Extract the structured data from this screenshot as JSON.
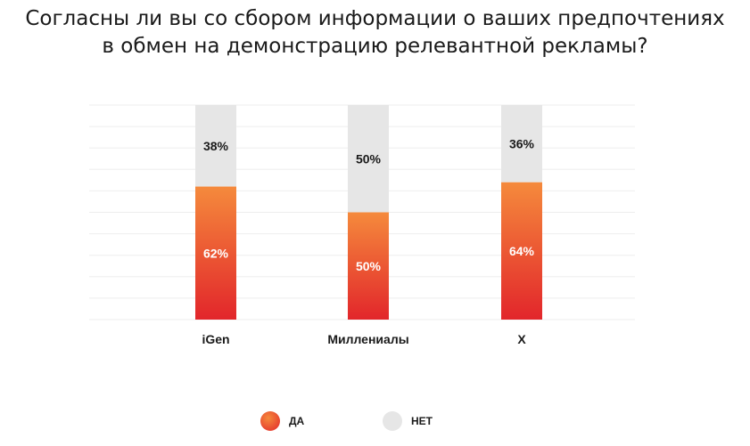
{
  "title_lines": [
    "Согласны ли вы со сбором информации о ваших предпочтениях",
    "в обмен на демонстрацию релевантной рекламы?"
  ],
  "chart_data": {
    "type": "bar",
    "stacked": true,
    "categories": [
      "iGen",
      "Миллениалы",
      "X"
    ],
    "series": [
      {
        "name": "ДА",
        "values": [
          62,
          50,
          64
        ],
        "labels": [
          "62%",
          "50%",
          "64%"
        ],
        "color_top": "#f58a3c",
        "color_bottom": "#e2262b",
        "label_color": "#ffffff"
      },
      {
        "name": "НЕТ",
        "values": [
          38,
          50,
          36
        ],
        "labels": [
          "38%",
          "50%",
          "36%"
        ],
        "color": "#e6e6e6",
        "label_color": "#1a1a1a"
      }
    ],
    "ylim": [
      0,
      100
    ],
    "grid": true,
    "legend_position": "bottom"
  },
  "legend": [
    {
      "label": "ДА",
      "color": "#ef5a2f"
    },
    {
      "label": "НЕТ",
      "color": "#e6e6e6"
    }
  ]
}
